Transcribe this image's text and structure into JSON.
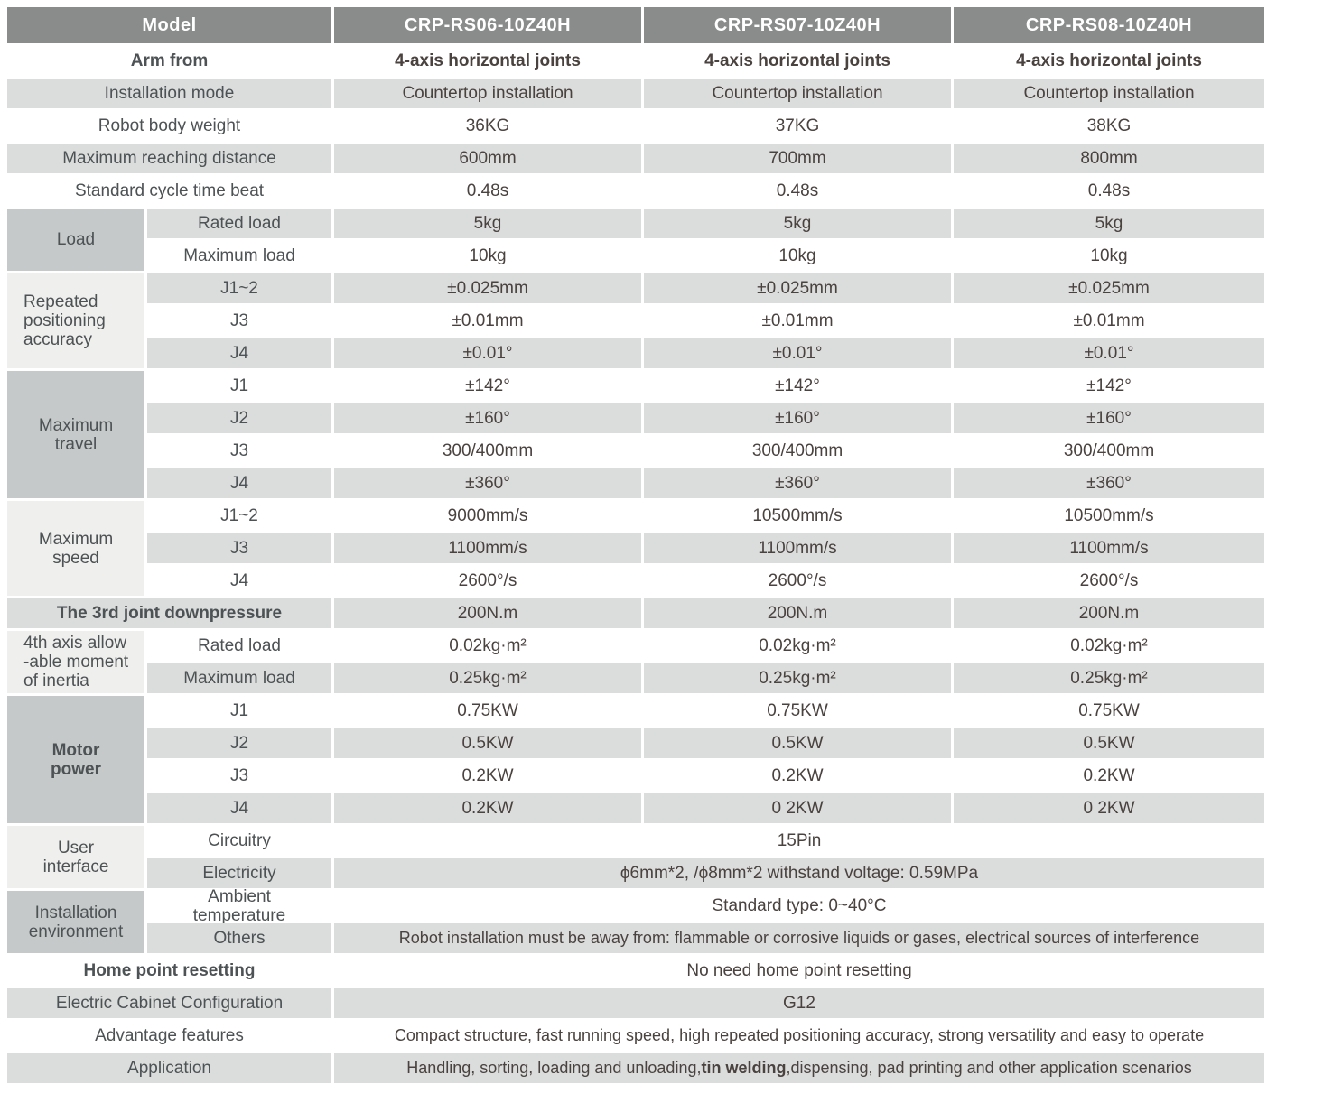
{
  "colors": {
    "header_bg": "#8a8c8c",
    "header_text": "#ffffff",
    "row_stripe": "#dbdcdc",
    "category_dark": "#c6c9ca",
    "category_light": "#efefed",
    "label_text": "#4d5254",
    "value_text": "#4a423f"
  },
  "table": {
    "model_header": {
      "label": "Model",
      "models": [
        "CRP-RS06-10Z40H",
        "CRP-RS07-10Z40H",
        "CRP-RS08-10Z40H"
      ]
    },
    "arm_from": {
      "label": "Arm from",
      "values": [
        "4-axis horizontal joints",
        "4-axis horizontal joints",
        "4-axis horizontal joints"
      ]
    },
    "installation_mode": {
      "label": "Installation mode",
      "values": [
        "Countertop installation",
        "Countertop installation",
        "Countertop installation"
      ]
    },
    "robot_body_weight": {
      "label": "Robot body weight",
      "values": [
        "36KG",
        "37KG",
        "38KG"
      ]
    },
    "max_reach": {
      "label": "Maximum reaching distance",
      "values": [
        "600mm",
        "700mm",
        "800mm"
      ]
    },
    "cycle_time": {
      "label": "Standard cycle time beat",
      "values": [
        "0.48s",
        "0.48s",
        "0.48s"
      ]
    },
    "load": {
      "category": "Load",
      "rated": {
        "label": "Rated load",
        "values": [
          "5kg",
          "5kg",
          "5kg"
        ]
      },
      "maximum": {
        "label": "Maximum load",
        "values": [
          "10kg",
          "10kg",
          "10kg"
        ]
      }
    },
    "accuracy": {
      "category": "Repeated\npositioning\naccuracy",
      "j12": {
        "label": "J1~2",
        "values": [
          "±0.025mm",
          "±0.025mm",
          "±0.025mm"
        ]
      },
      "j3": {
        "label": "J3",
        "values": [
          "±0.01mm",
          "±0.01mm",
          "±0.01mm"
        ]
      },
      "j4": {
        "label": "J4",
        "values": [
          "±0.01°",
          "±0.01°",
          "±0.01°"
        ]
      }
    },
    "travel": {
      "category": "Maximum\ntravel",
      "j1": {
        "label": "J1",
        "values": [
          "±142°",
          "±142°",
          "±142°"
        ]
      },
      "j2": {
        "label": "J2",
        "values": [
          "±160°",
          "±160°",
          "±160°"
        ]
      },
      "j3": {
        "label": "J3",
        "values": [
          "300/400mm",
          "300/400mm",
          "300/400mm"
        ]
      },
      "j4": {
        "label": "J4",
        "values": [
          "±360°",
          "±360°",
          "±360°"
        ]
      }
    },
    "speed": {
      "category": "Maximum\nspeed",
      "j12": {
        "label": "J1~2",
        "values": [
          "9000mm/s",
          "10500mm/s",
          "10500mm/s"
        ]
      },
      "j3": {
        "label": "J3",
        "values": [
          "1100mm/s",
          "1100mm/s",
          "1100mm/s"
        ]
      },
      "j4": {
        "label": "J4",
        "values": [
          "2600°/s",
          "2600°/s",
          "2600°/s"
        ]
      }
    },
    "downpressure": {
      "label": "The 3rd joint downpressure",
      "values": [
        "200N.m",
        "200N.m",
        "200N.m"
      ]
    },
    "inertia": {
      "category": "4th axis allow\n-able moment\nof inertia",
      "rated": {
        "label": "Rated load",
        "values": [
          "0.02kg·m²",
          "0.02kg·m²",
          "0.02kg·m²"
        ]
      },
      "maximum": {
        "label": "Maximum load",
        "values": [
          "0.25kg·m²",
          "0.25kg·m²",
          "0.25kg·m²"
        ]
      }
    },
    "motor_power": {
      "category": "Motor\npower",
      "j1": {
        "label": "J1",
        "values": [
          "0.75KW",
          "0.75KW",
          "0.75KW"
        ]
      },
      "j2": {
        "label": "J2",
        "values": [
          "0.5KW",
          "0.5KW",
          "0.5KW"
        ]
      },
      "j3": {
        "label": "J3",
        "values": [
          "0.2KW",
          "0.2KW",
          "0.2KW"
        ]
      },
      "j4": {
        "label": "J4",
        "values": [
          "0.2KW",
          "0 2KW",
          "0 2KW"
        ]
      }
    },
    "user_interface": {
      "category": "User\ninterface",
      "circuitry": {
        "label": "Circuitry",
        "value": "15Pin"
      },
      "electricity": {
        "label": "Electricity",
        "value": "ϕ6mm*2, /ϕ8mm*2  withstand voltage: 0.59MPa"
      }
    },
    "environment": {
      "category": "Installation\nenvironment",
      "ambient": {
        "label": "Ambient\ntemperature",
        "value": "Standard type:  0~40°C"
      },
      "others": {
        "label": "Others",
        "value": "Robot installation must be away from: flammable or corrosive liquids or gases, electrical sources of interference"
      }
    },
    "home_point": {
      "label": "Home point resetting",
      "value": "No need home point resetting"
    },
    "cabinet": {
      "label": "Electric Cabinet Configuration",
      "value": "G12"
    },
    "advantage": {
      "label": "Advantage features",
      "value": "Compact structure, fast running speed, high repeated positioning accuracy, strong versatility and easy to operate"
    },
    "application": {
      "label": "Application",
      "value_prefix": "Handling, sorting, loading and unloading,",
      "value_bold": "tin welding",
      "value_suffix": ",dispensing, pad printing and other application scenarios"
    }
  }
}
